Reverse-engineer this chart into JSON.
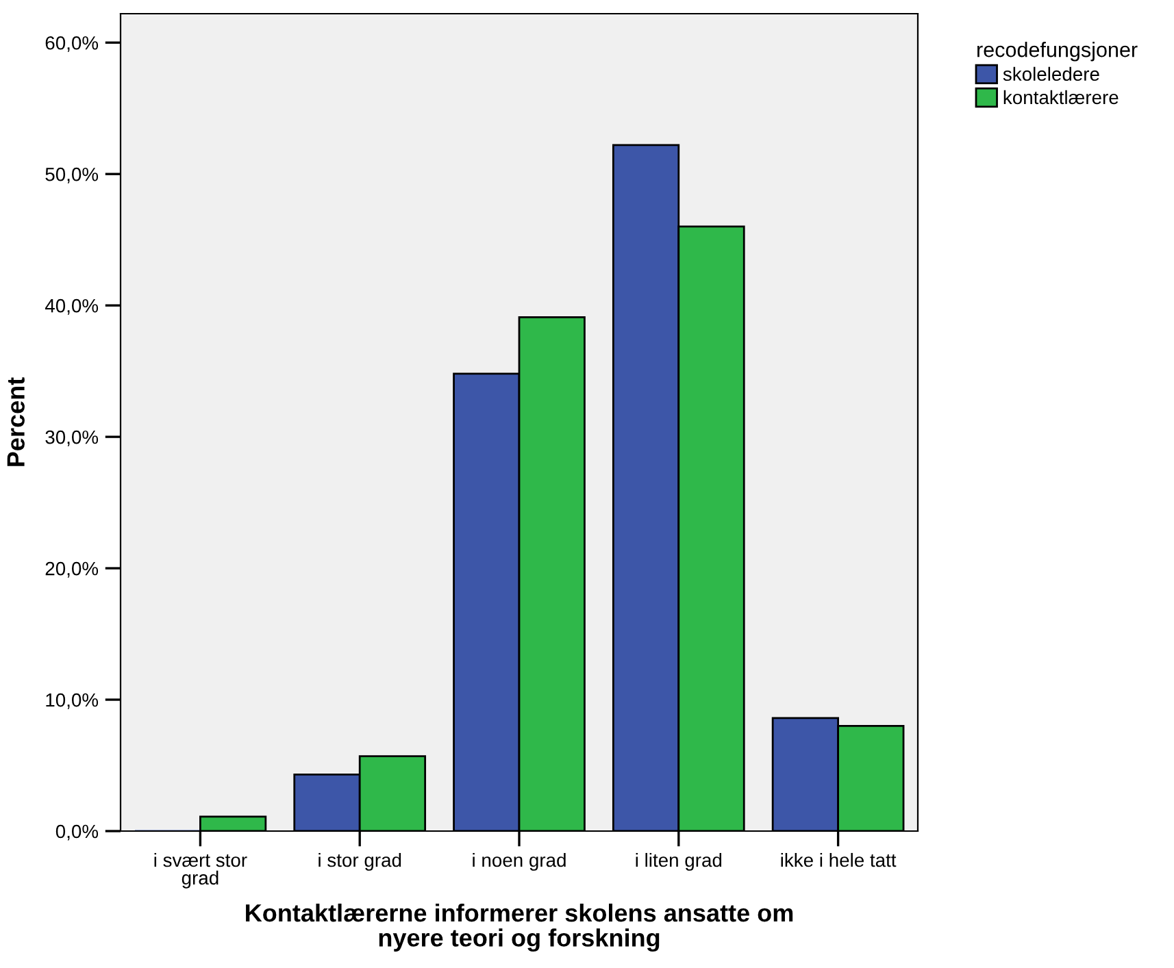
{
  "chart_data": {
    "type": "bar",
    "xlabel": "Kontaktlærerne informerer skolens ansatte om\nnyere teori og forskning",
    "ylabel": "Percent",
    "legend_title": "recodefungsjoner",
    "legend": "top right",
    "categories": [
      "i svært stor\ngrad",
      "i stor grad",
      "i noen grad",
      "i liten grad",
      "ikke i hele tatt"
    ],
    "series": [
      {
        "name": "skoleledere",
        "color": "#3d56a8",
        "values": [
          0,
          4.3,
          34.8,
          52.2,
          8.6
        ]
      },
      {
        "name": "kontaktlærere",
        "color": "#2fb84a",
        "values": [
          1.1,
          5.7,
          39.1,
          46.0,
          8.0
        ]
      }
    ],
    "ylim": [
      0,
      62.2
    ],
    "yticks": [
      {
        "value": 0,
        "label": "0,0%"
      },
      {
        "value": 10,
        "label": "10,0%"
      },
      {
        "value": 20,
        "label": "20,0%"
      },
      {
        "value": 30,
        "label": "30,0%"
      },
      {
        "value": 40,
        "label": "40,0%"
      },
      {
        "value": 50,
        "label": "50,0%"
      },
      {
        "value": 60,
        "label": "60,0%"
      }
    ],
    "grid": false
  }
}
